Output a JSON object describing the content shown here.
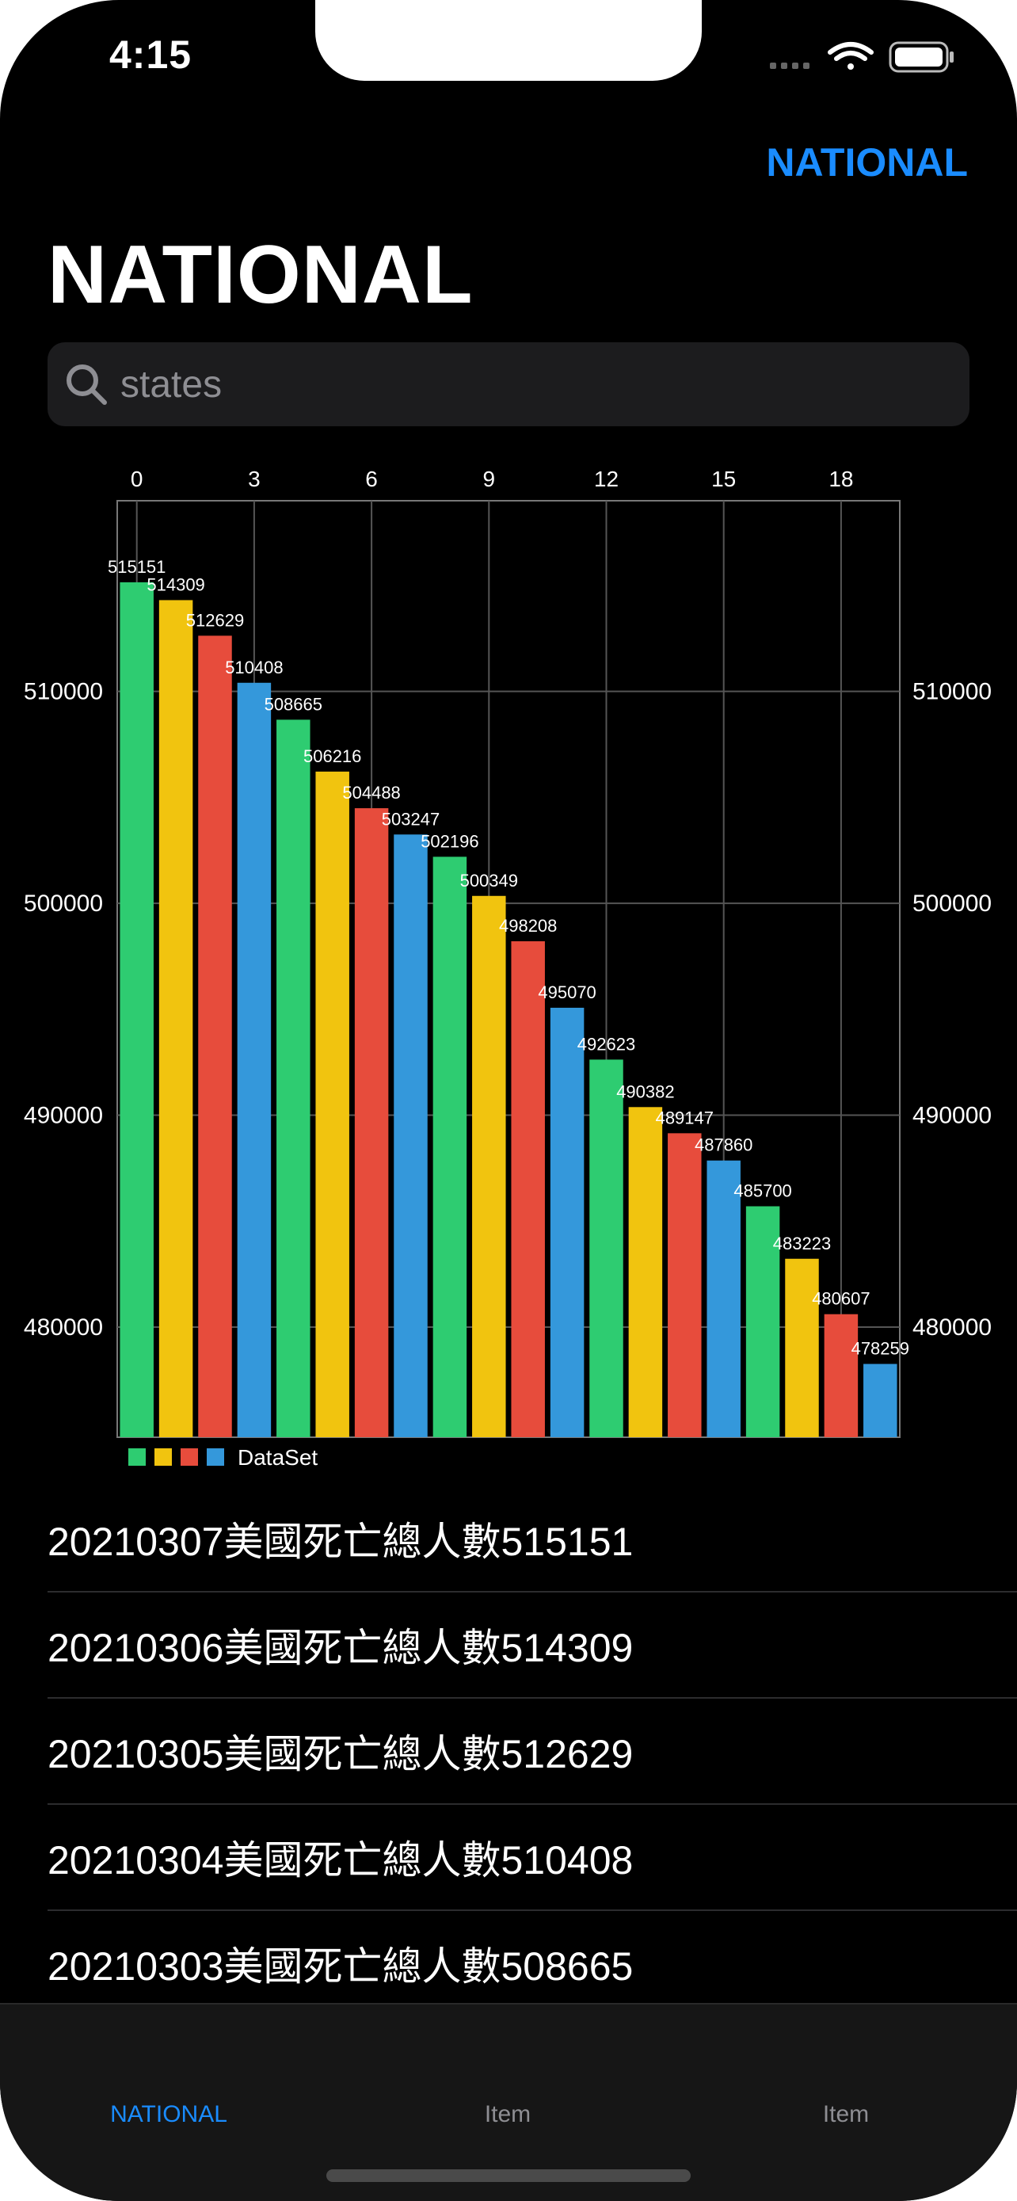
{
  "status_bar": {
    "time": "4:15",
    "icons": [
      "signal-icon",
      "wifi-icon",
      "battery-icon"
    ]
  },
  "nav": {
    "right_button": "NATIONAL",
    "title": "NATIONAL"
  },
  "search": {
    "placeholder": "states",
    "value": ""
  },
  "chart_data": {
    "type": "bar",
    "x": [
      0,
      1,
      2,
      3,
      4,
      5,
      6,
      7,
      8,
      9,
      10,
      11,
      12,
      13,
      14,
      15,
      16,
      17,
      18,
      19
    ],
    "values": [
      515151,
      514309,
      512629,
      510408,
      508665,
      506216,
      504488,
      503247,
      502196,
      500349,
      498208,
      495070,
      492623,
      490382,
      489147,
      487860,
      485700,
      483223,
      480607,
      478259
    ],
    "value_labels": [
      "515151",
      "514309",
      "512629",
      "510408",
      "508665",
      "506216",
      "504488",
      "503247",
      "502196",
      "500349",
      "498208",
      "495070",
      "492623",
      "490382",
      "489147",
      "487860",
      "485700",
      "483223",
      "480607",
      "478259"
    ],
    "bar_colors": [
      "#2ecc71",
      "#f1c40f",
      "#e74c3c",
      "#3498db"
    ],
    "x_ticks": [
      "0",
      "3",
      "6",
      "9",
      "12",
      "15",
      "18"
    ],
    "x_tick_values": [
      0,
      3,
      6,
      9,
      12,
      15,
      18
    ],
    "y_ticks": [
      "510000",
      "500000",
      "490000",
      "480000"
    ],
    "y_tick_values": [
      510000,
      500000,
      490000,
      480000
    ],
    "ylim": [
      474800,
      519000
    ],
    "x_axis_position": "top",
    "grid": true,
    "legend": {
      "label": "DataSet",
      "placement": "bottom-left"
    }
  },
  "list": {
    "items": [
      "20210307美國死亡總人數515151",
      "20210306美國死亡總人數514309",
      "20210305美國死亡總人數512629",
      "20210304美國死亡總人數510408",
      "20210303美國死亡總人數508665"
    ]
  },
  "tabbar": {
    "tabs": [
      {
        "label": "NATIONAL",
        "active": true
      },
      {
        "label": "Item",
        "active": false
      },
      {
        "label": "Item",
        "active": false
      }
    ],
    "active_color": "#1a8cff",
    "inactive_color": "#8e8e93"
  }
}
